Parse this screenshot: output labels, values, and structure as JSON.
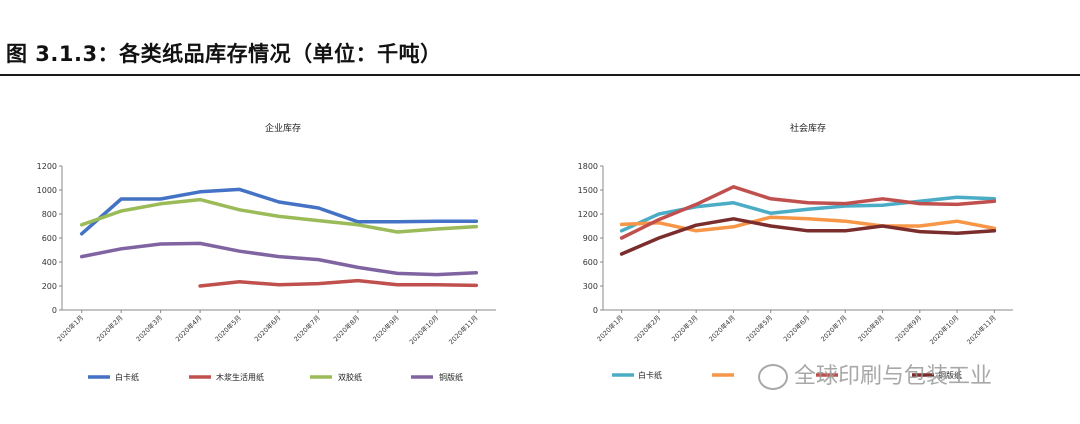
{
  "figure_title": "图 3.1.3：各类纸品库存情况（单位：千吨）",
  "watermark": "全球印刷与包装工业",
  "chart_data": [
    {
      "type": "line",
      "title": "企业库存",
      "categories": [
        "2020年1月",
        "2020年2月",
        "2020年3月",
        "2020年4月",
        "2020年5月",
        "2020年6月",
        "2020年7月",
        "2020年8月",
        "2020年9月",
        "2020年10月",
        "2020年11月"
      ],
      "ylim": [
        0,
        1200
      ],
      "yticks": [
        0,
        200,
        400,
        600,
        800,
        1000,
        1200
      ],
      "legend_position": "bottom",
      "series": [
        {
          "name": "白卡纸",
          "color": "#4472C4",
          "values": [
            635,
            925,
            925,
            985,
            1005,
            900,
            850,
            735,
            735,
            740,
            740
          ]
        },
        {
          "name": "木浆生活用纸",
          "color": "#C0504D",
          "values": [
            null,
            null,
            null,
            200,
            235,
            210,
            220,
            245,
            210,
            210,
            205
          ]
        },
        {
          "name": "双胶纸",
          "color": "#9BBB59",
          "values": [
            710,
            825,
            885,
            920,
            835,
            780,
            745,
            710,
            650,
            675,
            695
          ]
        },
        {
          "name": "铜版纸",
          "color": "#8064A2",
          "values": [
            445,
            510,
            550,
            555,
            490,
            445,
            420,
            355,
            305,
            295,
            310
          ]
        }
      ]
    },
    {
      "type": "line",
      "title": "社会库存",
      "categories": [
        "2020年1月",
        "2020年2月",
        "2020年3月",
        "2020年4月",
        "2020年5月",
        "2020年6月",
        "2020年7月",
        "2020年8月",
        "2020年9月",
        "2020年10月",
        "2020年11月"
      ],
      "ylim": [
        0,
        1800
      ],
      "yticks": [
        0,
        300,
        600,
        900,
        1200,
        1500,
        1800
      ],
      "legend_position": "bottom",
      "series": [
        {
          "name": "白卡纸",
          "color": "#4BACC6",
          "values": [
            990,
            1200,
            1290,
            1340,
            1210,
            1260,
            1300,
            1310,
            1360,
            1410,
            1390
          ]
        },
        {
          "name": "",
          "color": "#F79646",
          "values": [
            1070,
            1090,
            990,
            1040,
            1160,
            1140,
            1110,
            1050,
            1050,
            1110,
            1020
          ]
        },
        {
          "name": "",
          "color": "#C0504D",
          "values": [
            900,
            1130,
            1320,
            1540,
            1390,
            1340,
            1330,
            1390,
            1330,
            1320,
            1360
          ]
        },
        {
          "name": "铜版纸",
          "color": "#7B2C2C",
          "values": [
            700,
            900,
            1060,
            1140,
            1050,
            990,
            990,
            1050,
            980,
            960,
            990
          ]
        }
      ]
    }
  ]
}
